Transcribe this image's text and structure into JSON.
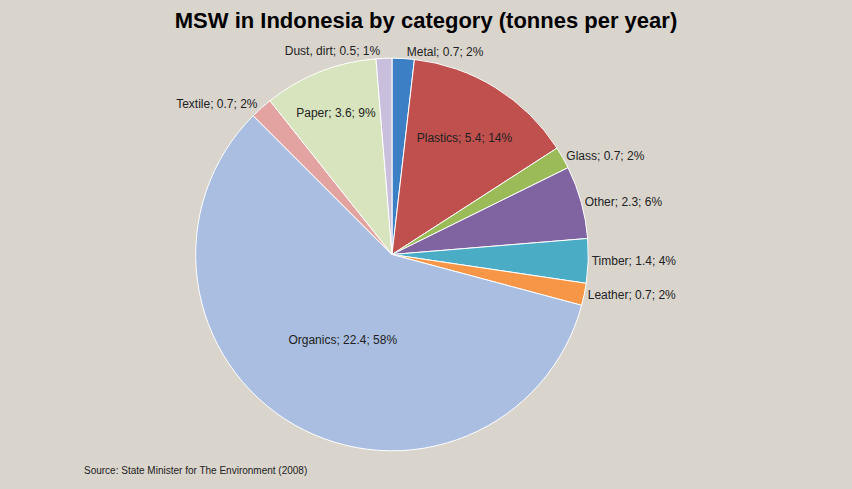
{
  "chart_data": {
    "type": "pie",
    "title": "MSW in Indonesia by category (tonnes per year)",
    "categories": [
      "Metal",
      "Plastics",
      "Glass",
      "Other",
      "Timber",
      "Leather",
      "Organics",
      "Textile",
      "Paper",
      "Dust, dirt"
    ],
    "values": [
      0.7,
      5.4,
      0.7,
      2.3,
      1.4,
      0.7,
      22.4,
      0.7,
      3.6,
      0.5
    ],
    "value_labels": [
      "Metal; 0.7; 2%",
      "Plastics; 5.4; 14%",
      "Glass; 0.7; 2%",
      "Other; 2.3; 6%",
      "Timber; 1.4; 4%",
      "Leather; 0.7; 2%",
      "Organics; 22.4; 58%",
      "Textile; 0.7; 2%",
      "Paper; 3.6; 9%",
      "Dust, dirt; 0.5; 1%"
    ],
    "colors": [
      "#3d7fc4",
      "#c0504d",
      "#9bbb59",
      "#8064a2",
      "#4bacc6",
      "#f79646",
      "#a9bee0",
      "#e3a3a0",
      "#d7e4bd",
      "#c9bfdc"
    ],
    "data_labels": true,
    "annotations": [
      "Source: State Minister for The Environment (2008)"
    ]
  }
}
